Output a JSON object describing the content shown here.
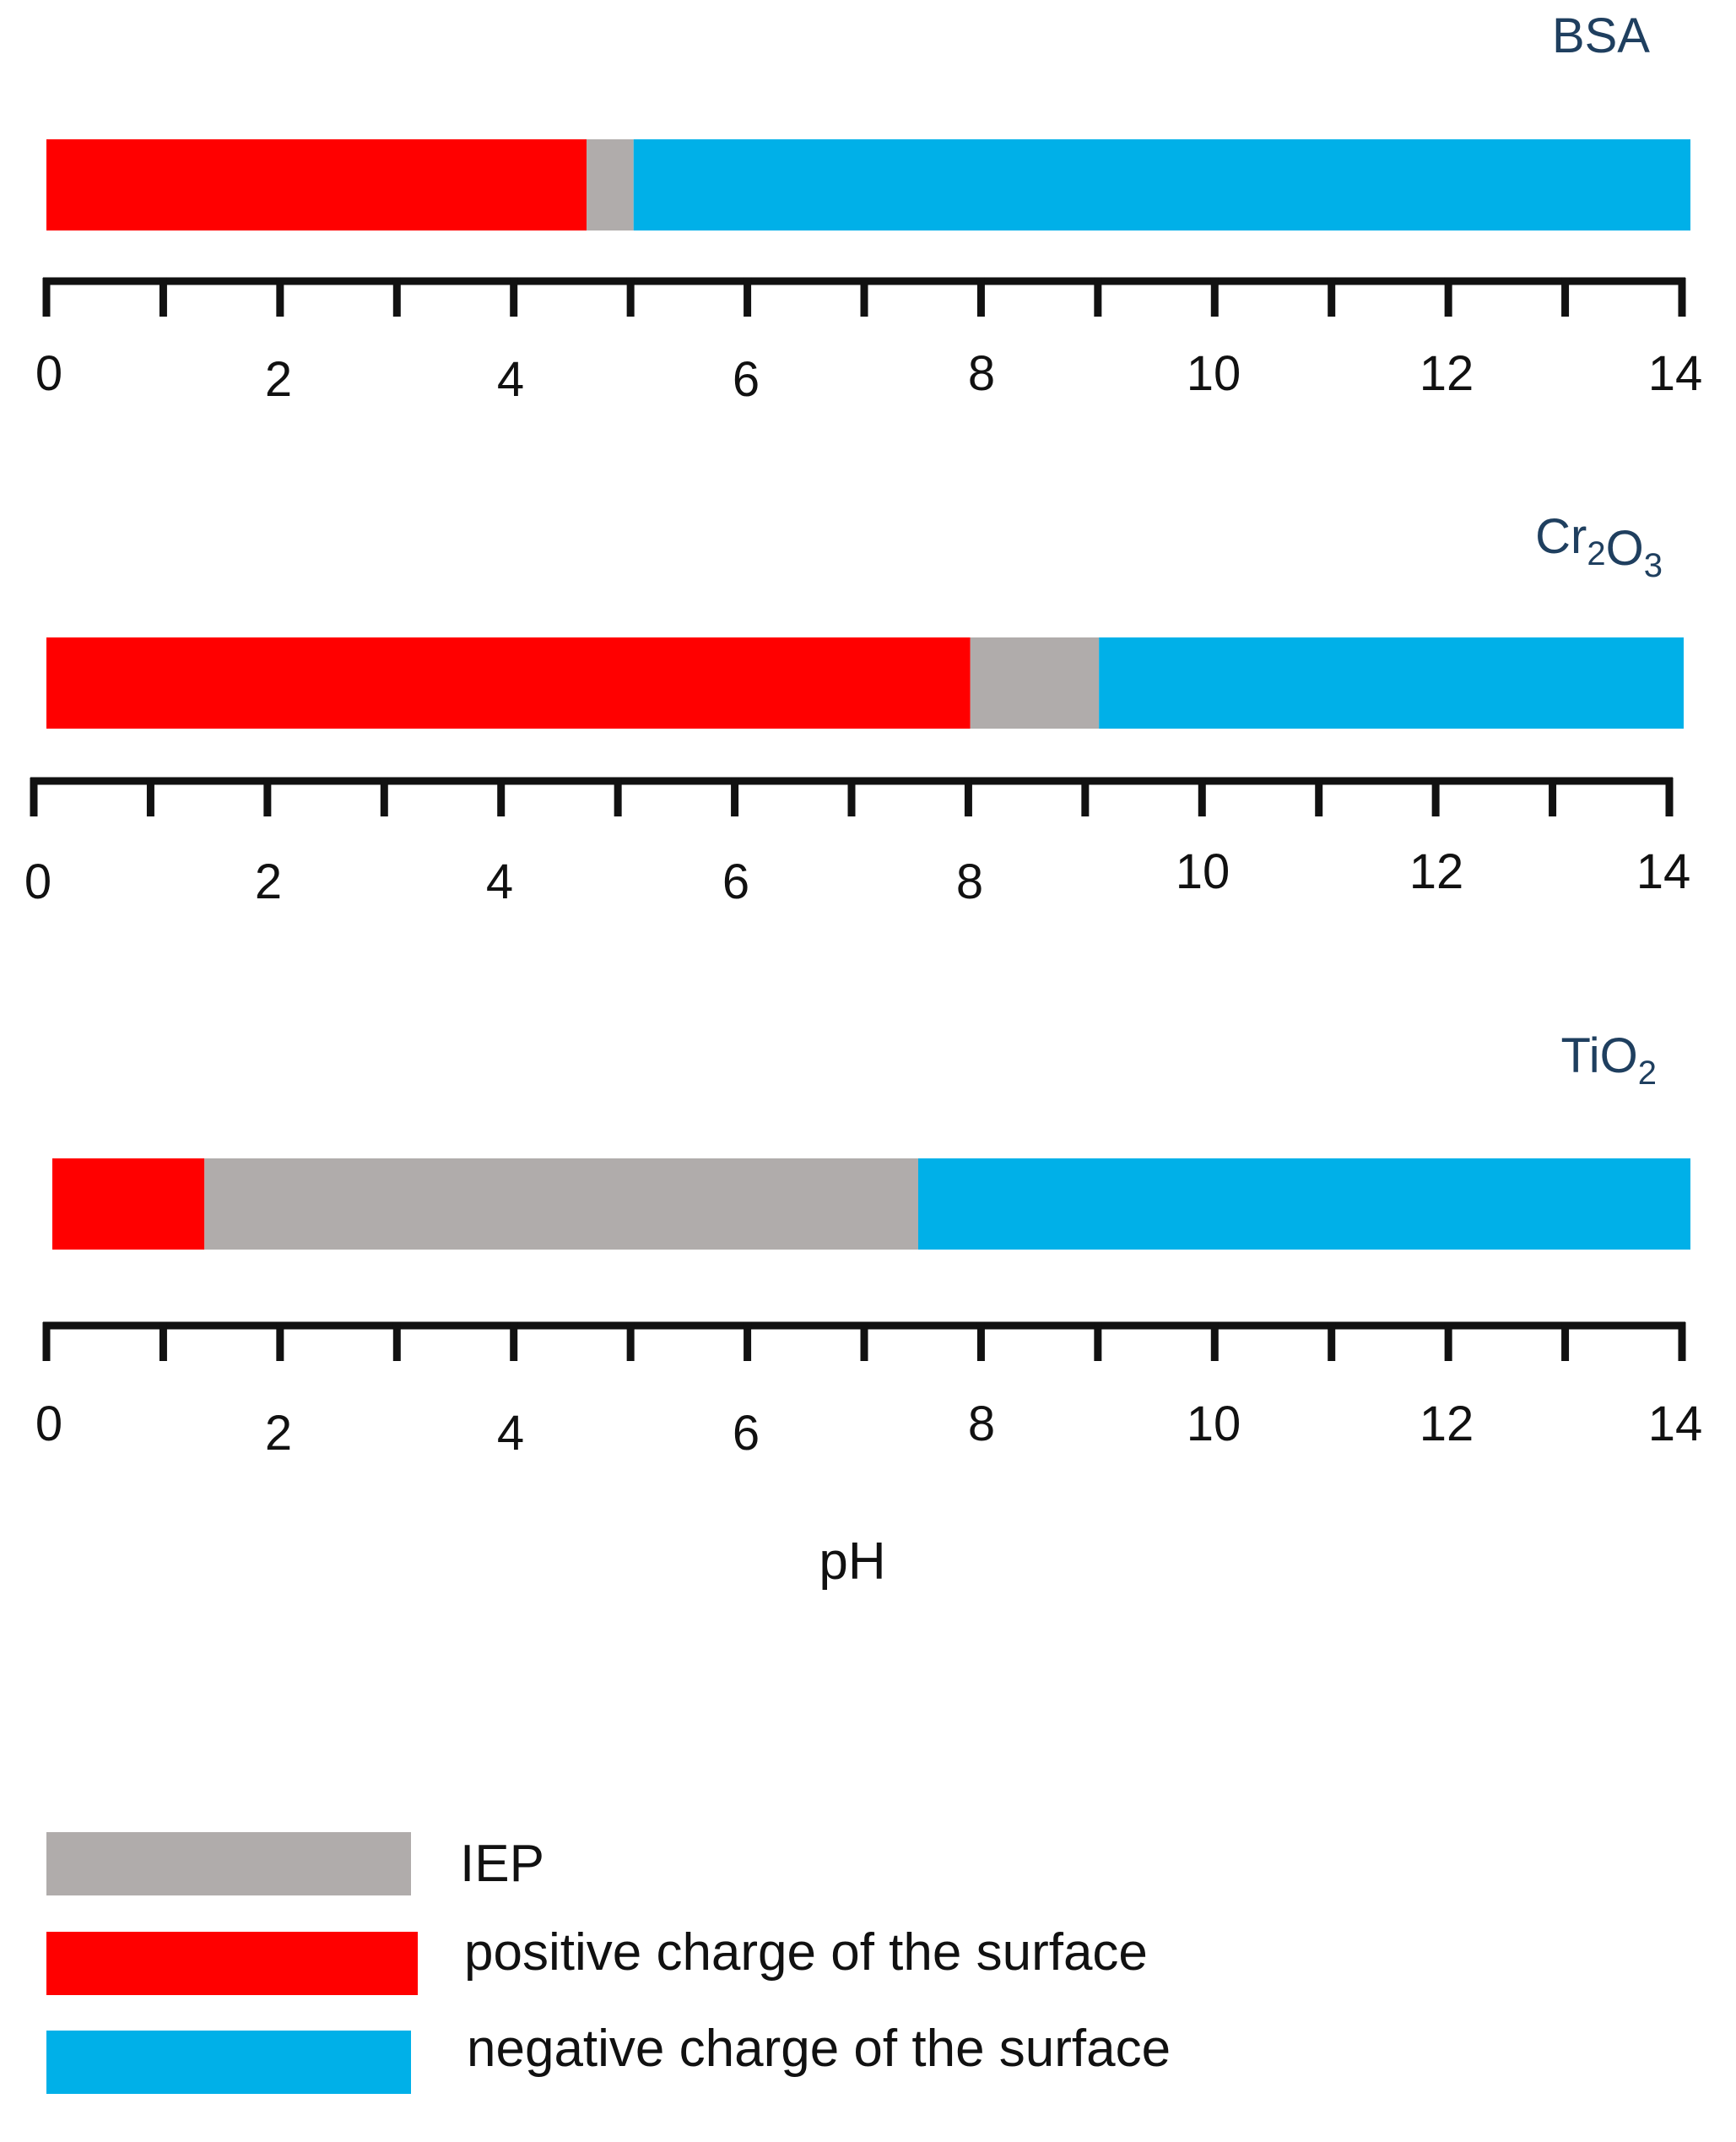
{
  "chart_data": {
    "type": "bar",
    "orientation": "horizontal",
    "xlabel": "pH",
    "xlim": [
      0,
      14
    ],
    "ticks": {
      "major": [
        0,
        2,
        4,
        6,
        8,
        10,
        12,
        14
      ],
      "minor": [
        1,
        3,
        5,
        7,
        9,
        11,
        13
      ]
    },
    "panels": [
      {
        "material": {
          "base": "BSA",
          "parts": [
            [
              "BSA",
              ""
            ]
          ]
        },
        "segments": [
          {
            "category": "positive",
            "start": 0,
            "end": 4.6
          },
          {
            "category": "iep",
            "start": 4.6,
            "end": 5.0
          },
          {
            "category": "negative",
            "start": 5.0,
            "end": 14
          }
        ]
      },
      {
        "material": {
          "base": "Cr2O3",
          "parts": [
            [
              "Cr",
              "2"
            ],
            [
              "O",
              "3"
            ]
          ]
        },
        "segments": [
          {
            "category": "positive",
            "start": 0,
            "end": 7.9
          },
          {
            "category": "iep",
            "start": 7.9,
            "end": 9.0
          },
          {
            "category": "negative",
            "start": 9.0,
            "end": 14
          }
        ]
      },
      {
        "material": {
          "base": "TiO2",
          "parts": [
            [
              "TiO",
              "2"
            ]
          ]
        },
        "segments": [
          {
            "category": "positive",
            "start": 0,
            "end": 1.3
          },
          {
            "category": "iep",
            "start": 1.3,
            "end": 7.4
          },
          {
            "category": "negative",
            "start": 7.4,
            "end": 14
          }
        ]
      }
    ],
    "legend": {
      "position": "bottom-left",
      "items": [
        {
          "category": "iep",
          "label": "IEP"
        },
        {
          "category": "positive",
          "label": "positive charge of the surface"
        },
        {
          "category": "negative",
          "label": "negative charge of the surface"
        }
      ]
    },
    "colors": {
      "positive": "#ff0000",
      "iep": "#b0acab",
      "negative": "#00b0e8",
      "axis": "#111111",
      "material_label": "#1f3f5f"
    }
  }
}
